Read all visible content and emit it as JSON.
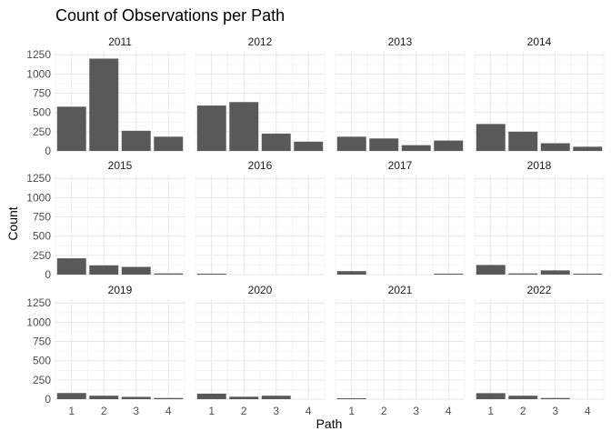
{
  "chart_data": {
    "type": "bar",
    "title": "Count of Observations per Path",
    "xlabel": "Path",
    "ylabel": "Count",
    "categories": [
      "1",
      "2",
      "3",
      "4"
    ],
    "ylim": [
      0,
      1300
    ],
    "yticks": [
      "0",
      "250",
      "500",
      "750",
      "1000",
      "1250"
    ],
    "bar_color": "#595959",
    "grid": true,
    "panels": [
      {
        "label": "2011",
        "values": [
          575,
          1200,
          262,
          185
        ]
      },
      {
        "label": "2012",
        "values": [
          590,
          635,
          225,
          120
        ]
      },
      {
        "label": "2013",
        "values": [
          185,
          162,
          75,
          135
        ]
      },
      {
        "label": "2014",
        "values": [
          350,
          250,
          100,
          55
        ]
      },
      {
        "label": "2015",
        "values": [
          212,
          120,
          100,
          15
        ]
      },
      {
        "label": "2016",
        "values": [
          12,
          0,
          0,
          0
        ]
      },
      {
        "label": "2017",
        "values": [
          45,
          0,
          0,
          12
        ]
      },
      {
        "label": "2018",
        "values": [
          125,
          15,
          55,
          12
        ]
      },
      {
        "label": "2019",
        "values": [
          80,
          45,
          30,
          15
        ]
      },
      {
        "label": "2020",
        "values": [
          72,
          32,
          45,
          0
        ]
      },
      {
        "label": "2021",
        "values": [
          12,
          0,
          0,
          0
        ]
      },
      {
        "label": "2022",
        "values": [
          78,
          45,
          15,
          0
        ]
      }
    ]
  }
}
